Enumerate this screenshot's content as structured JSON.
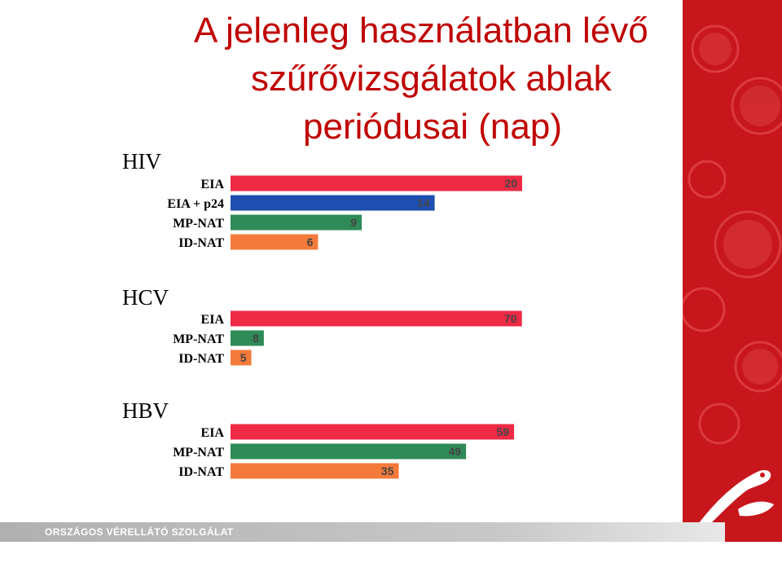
{
  "slide": {
    "title_lines": [
      "A jelenleg használatban lévő",
      "szűrővizsgálatok ablak",
      "periódusai (nap)"
    ],
    "footer": "ORSZÁGOS VÉRELLÁTÓ SZOLGÁLAT"
  },
  "colors": {
    "eia": "#ee2a45",
    "eia_p24": "#1e4fb0",
    "mp_nat": "#2e8b57",
    "id_nat": "#f37a3a",
    "panel": "#c8161d",
    "title": "#c00000"
  },
  "icons": [
    "pelican-logo"
  ],
  "chart_data": {
    "type": "bar",
    "orientation": "horizontal",
    "title": "",
    "xlabel": "",
    "ylabel": "",
    "grid": false,
    "groups": [
      {
        "name": "HIV",
        "rows": [
          {
            "label": "EIA",
            "value": 20,
            "color_key": "eia"
          },
          {
            "label": "EIA + p24",
            "value": 14,
            "color_key": "eia_p24"
          },
          {
            "label": "MP-NAT",
            "value": 9,
            "color_key": "mp_nat"
          },
          {
            "label": "ID-NAT",
            "value": 6,
            "color_key": "id_nat"
          }
        ]
      },
      {
        "name": "HCV",
        "rows": [
          {
            "label": "EIA",
            "value": 70,
            "color_key": "eia"
          },
          {
            "label": "MP-NAT",
            "value": 8,
            "color_key": "mp_nat"
          },
          {
            "label": "ID-NAT",
            "value": 5,
            "color_key": "id_nat"
          }
        ]
      },
      {
        "name": "HBV",
        "rows": [
          {
            "label": "EIA",
            "value": 59,
            "color_key": "eia"
          },
          {
            "label": "MP-NAT",
            "value": 49,
            "color_key": "mp_nat"
          },
          {
            "label": "ID-NAT",
            "value": 35,
            "color_key": "id_nat"
          }
        ]
      }
    ]
  }
}
